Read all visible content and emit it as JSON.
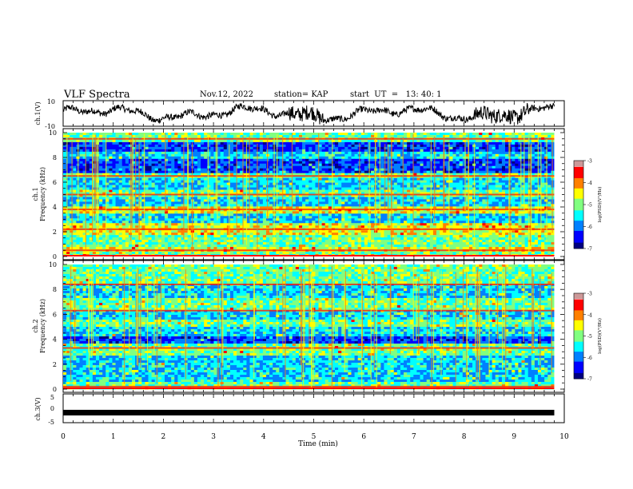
{
  "header": {
    "title": "VLF Spectra",
    "date": "Nov.12, 2022",
    "station": "station= KAP",
    "start": "start  UT  =   13: 40: 1"
  },
  "colorbar": {
    "label": "log(PSD)(V²/Hz)",
    "ticks": [
      "-3",
      "-4",
      "-5",
      "-6",
      "-7"
    ],
    "colors": [
      "#800000",
      "#ff0000",
      "#ff8000",
      "#ffff00",
      "#80ff80",
      "#00ffff",
      "#0080ff",
      "#0000ff",
      "#000080"
    ]
  },
  "chart_data": [
    {
      "type": "line",
      "name": "ch.1 waveform",
      "ylabel": "ch.1(V)",
      "xlim": [
        0,
        10
      ],
      "ylim": [
        -10,
        10
      ],
      "yticks": [
        "10",
        "-10"
      ],
      "description_values": "noisy waveform oscillating between about -8 and 9 V over 0–9.8 min"
    },
    {
      "type": "heatmap",
      "name": "ch.1 spectrogram",
      "ylabel": "ch.1 Frequency (kHz)",
      "ylabel_ch": "ch.1",
      "ylabel_freq": "Frequency (kHz)",
      "xlim": [
        0,
        9.8
      ],
      "ylim": [
        0,
        10
      ],
      "yticks": [
        "0",
        "2",
        "4",
        "6",
        "8",
        "10"
      ],
      "zlim": [
        -7,
        -3
      ],
      "bands": [
        {
          "f0": 0,
          "f1": 0.3,
          "level": "green"
        },
        {
          "f0": 0.3,
          "f1": 0.7,
          "level": "yellow"
        },
        {
          "f0": 0.7,
          "f1": 1.8,
          "level": "green"
        },
        {
          "f0": 1.8,
          "f1": 2.6,
          "level": "yellow"
        },
        {
          "f0": 2.6,
          "f1": 3.4,
          "level": "cyan"
        },
        {
          "f0": 3.4,
          "f1": 4.0,
          "level": "yellow"
        },
        {
          "f0": 4.0,
          "f1": 4.8,
          "level": "cyan"
        },
        {
          "f0": 4.8,
          "f1": 5.4,
          "level": "green"
        },
        {
          "f0": 5.4,
          "f1": 6.3,
          "level": "cyan"
        },
        {
          "f0": 6.3,
          "f1": 6.8,
          "level": "green"
        },
        {
          "f0": 6.8,
          "f1": 7.8,
          "level": "blue"
        },
        {
          "f0": 7.8,
          "f1": 8.5,
          "level": "cyan"
        },
        {
          "f0": 8.5,
          "f1": 9.3,
          "level": "blue"
        },
        {
          "f0": 9.3,
          "f1": 10,
          "level": "green"
        }
      ],
      "lines_khz": [
        0.5,
        2.2,
        3.8,
        5.0,
        6.5,
        9.5
      ]
    },
    {
      "type": "heatmap",
      "name": "ch.2 spectrogram",
      "ylabel": "ch.2 Frequency (kHz)",
      "ylabel_ch": "ch.2",
      "ylabel_freq": "Frequency (kHz)",
      "xlim": [
        0,
        9.8
      ],
      "ylim": [
        0,
        10
      ],
      "yticks": [
        "0",
        "2",
        "4",
        "6",
        "8",
        "10"
      ],
      "zlim": [
        -7,
        -3
      ],
      "bands": [
        {
          "f0": 0,
          "f1": 0.6,
          "level": "green"
        },
        {
          "f0": 0.6,
          "f1": 1.6,
          "level": "cyan"
        },
        {
          "f0": 1.6,
          "f1": 2.6,
          "level": "cyan"
        },
        {
          "f0": 2.6,
          "f1": 3.6,
          "level": "green"
        },
        {
          "f0": 3.6,
          "f1": 4.3,
          "level": "blue"
        },
        {
          "f0": 4.3,
          "f1": 5.0,
          "level": "cyan"
        },
        {
          "f0": 5.0,
          "f1": 5.6,
          "level": "green"
        },
        {
          "f0": 5.6,
          "f1": 6.4,
          "level": "cyan"
        },
        {
          "f0": 6.4,
          "f1": 7.4,
          "level": "green"
        },
        {
          "f0": 7.4,
          "f1": 8.4,
          "level": "cyan"
        },
        {
          "f0": 8.4,
          "f1": 10,
          "level": "green"
        }
      ],
      "lines_khz": [
        0.2,
        3.3,
        6.3,
        8.4
      ]
    },
    {
      "type": "line",
      "name": "ch.3 waveform",
      "ylabel": "ch.3(V)",
      "xlim": [
        0,
        10
      ],
      "ylim": [
        -5,
        5
      ],
      "yticks": [
        "5",
        "0",
        "-5"
      ],
      "constant_value": -1.5
    }
  ],
  "xaxis": {
    "label": "Time  (min)",
    "ticks": [
      "0",
      "1",
      "2",
      "3",
      "4",
      "5",
      "6",
      "7",
      "8",
      "9",
      "10"
    ],
    "xlim": [
      0,
      10
    ]
  }
}
